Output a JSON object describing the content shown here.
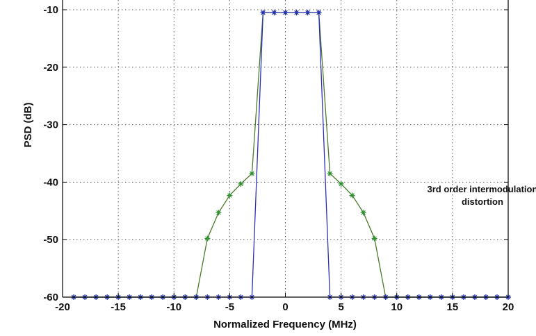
{
  "chart_data": {
    "type": "line",
    "xlabel": "Normalized Frequency (MHz)",
    "ylabel": "PSD (dB)",
    "xlim": [
      -20,
      20
    ],
    "ylim": [
      -60,
      -10
    ],
    "xticks": [
      "-20",
      "-15",
      "-10",
      "-5",
      "0",
      "5",
      "10",
      "15",
      "20"
    ],
    "yticks": [
      "-10",
      "-20",
      "-30",
      "-40",
      "-50",
      "-60"
    ],
    "grid": true,
    "annotation": {
      "line1": "3rd order intermodulation",
      "line2": "distortion",
      "x": 10.2,
      "y": -42
    },
    "series": [
      {
        "color": "#4a7a2a",
        "marker": "*",
        "marker_color": "#2f8f2f",
        "x": [
          -19,
          -18,
          -17,
          -16,
          -15,
          -14,
          -13,
          -12,
          -11,
          -10,
          -9,
          -8,
          -7,
          -6,
          -5,
          -4,
          -3,
          -2,
          -1,
          0,
          1,
          2,
          3,
          4,
          5,
          6,
          7,
          8,
          9,
          10,
          11,
          12,
          13,
          14,
          15,
          16,
          17,
          18,
          19,
          20
        ],
        "y": [
          -60,
          -60,
          -60,
          -60,
          -60,
          -60,
          -60,
          -60,
          -60,
          -60,
          -60,
          -60,
          -49.8,
          -45.3,
          -42.3,
          -40.3,
          -38.5,
          -10.5,
          -10.5,
          -10.5,
          -10.5,
          -10.5,
          -10.5,
          -38.5,
          -40.3,
          -42.3,
          -45.3,
          -49.8,
          -60,
          -60,
          -60,
          -60,
          -60,
          -60,
          -60,
          -60,
          -60,
          -60,
          -60,
          -60
        ]
      },
      {
        "color": "#2b2fb8",
        "marker": "*",
        "marker_color": "#2b2fb8",
        "x": [
          -19,
          -18,
          -17,
          -16,
          -15,
          -14,
          -13,
          -12,
          -11,
          -10,
          -9,
          -8,
          -7,
          -6,
          -5,
          -4,
          -3,
          -2,
          -1,
          0,
          1,
          2,
          3,
          4,
          5,
          6,
          7,
          8,
          9,
          10,
          11,
          12,
          13,
          14,
          15,
          16,
          17,
          18,
          19,
          20
        ],
        "y": [
          -60,
          -60,
          -60,
          -60,
          -60,
          -60,
          -60,
          -60,
          -60,
          -60,
          -60,
          -60,
          -60,
          -60,
          -60,
          -60,
          -60,
          -10.5,
          -10.5,
          -10.5,
          -10.5,
          -10.5,
          -10.5,
          -60,
          -60,
          -60,
          -60,
          -60,
          -60,
          -60,
          -60,
          -60,
          -60,
          -60,
          -60,
          -60,
          -60,
          -60,
          -60,
          -60
        ]
      }
    ]
  }
}
